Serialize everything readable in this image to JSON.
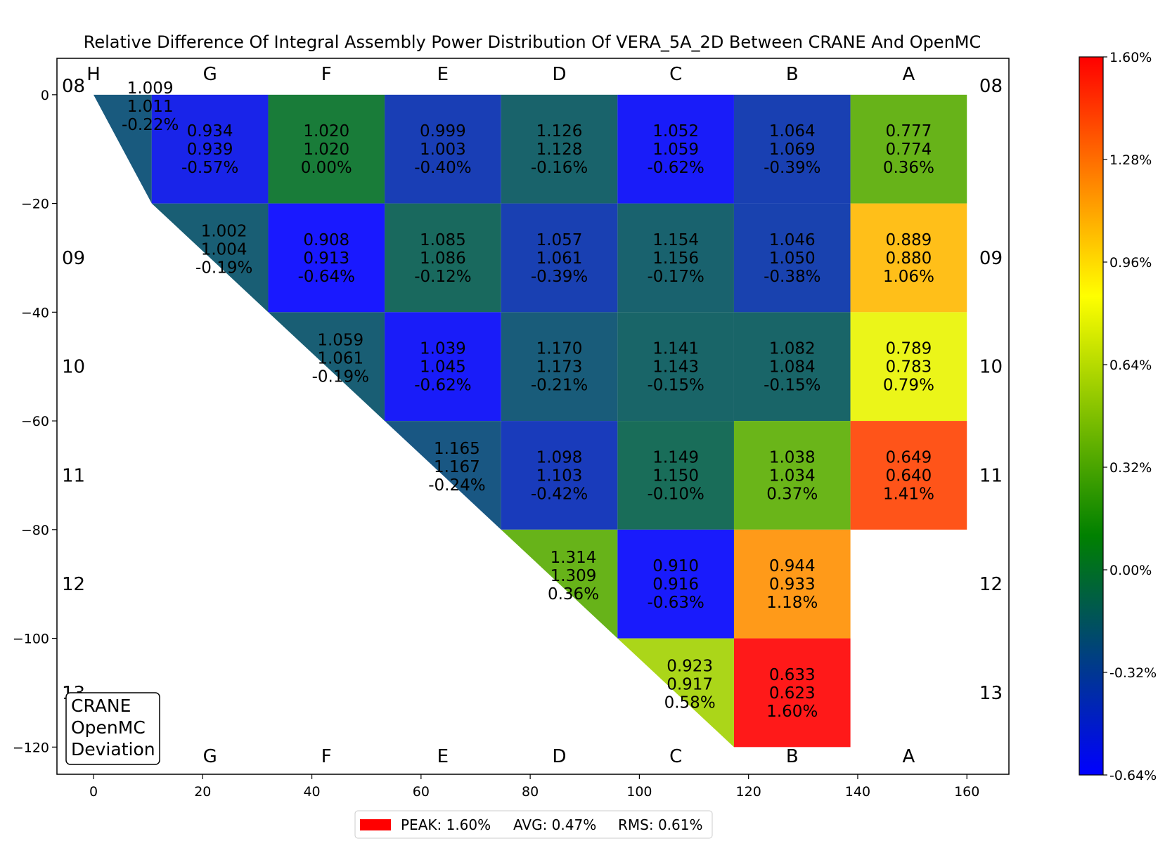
{
  "chart_data": {
    "type": "heatmap",
    "title": "Relative Difference Of Integral Assembly Power Distribution Of VERA_5A_2D Between CRANE And OpenMC",
    "xlim": [
      -6.7,
      167.7
    ],
    "ylim": [
      -125,
      6.7
    ],
    "x_ticks": [
      0,
      20,
      40,
      60,
      80,
      100,
      120,
      140,
      160
    ],
    "y_ticks": [
      0,
      -20,
      -40,
      -60,
      -80,
      -100,
      -120
    ],
    "x_tick_labels": [
      "0",
      "20",
      "40",
      "60",
      "80",
      "100",
      "120",
      "140",
      "160"
    ],
    "y_tick_labels": [
      "0",
      "−20",
      "−40",
      "−60",
      "−80",
      "−100",
      "−120"
    ],
    "column_labels_top": [
      "H",
      "G",
      "F",
      "E",
      "D",
      "C",
      "B",
      "A"
    ],
    "column_labels_bottom": [
      "G",
      "F",
      "E",
      "D",
      "C",
      "B",
      "A"
    ],
    "row_labels": [
      "08",
      "09",
      "10",
      "11",
      "12",
      "13"
    ],
    "colorbar": {
      "min": -0.64,
      "max": 1.6,
      "colors": [
        "#0000ff",
        "#008000",
        "#ffff00",
        "#ff0000"
      ],
      "tick_values": [
        -0.64,
        -0.32,
        0.0,
        0.32,
        0.64,
        0.96,
        1.28,
        1.6
      ],
      "tick_labels": [
        "-0.64%",
        "-0.32%",
        "0.00%",
        "0.32%",
        "0.64%",
        "0.96%",
        "1.28%",
        "1.60%"
      ]
    },
    "legend_box": [
      "CRANE",
      "OpenMC",
      "Deviation"
    ],
    "stats": {
      "peak": "PEAK: 1.60%",
      "avg": "AVG: 0.47%",
      "rms": "RMS: 0.61%",
      "color": "#ff0000"
    },
    "cells": [
      {
        "row": 0,
        "col": 0,
        "crane": "1.009",
        "openmc": "1.011",
        "dev": "-0.22%",
        "value": -0.22
      },
      {
        "row": 0,
        "col": 1,
        "crane": "0.934",
        "openmc": "0.939",
        "dev": "-0.57%",
        "value": -0.57
      },
      {
        "row": 0,
        "col": 2,
        "crane": "1.020",
        "openmc": "1.020",
        "dev": "0.00%",
        "value": 0.0
      },
      {
        "row": 0,
        "col": 3,
        "crane": "0.999",
        "openmc": "1.003",
        "dev": "-0.40%",
        "value": -0.4
      },
      {
        "row": 0,
        "col": 4,
        "crane": "1.126",
        "openmc": "1.128",
        "dev": "-0.16%",
        "value": -0.16
      },
      {
        "row": 0,
        "col": 5,
        "crane": "1.052",
        "openmc": "1.059",
        "dev": "-0.62%",
        "value": -0.62
      },
      {
        "row": 0,
        "col": 6,
        "crane": "1.064",
        "openmc": "1.069",
        "dev": "-0.39%",
        "value": -0.39
      },
      {
        "row": 0,
        "col": 7,
        "crane": "0.777",
        "openmc": "0.774",
        "dev": "0.36%",
        "value": 0.36
      },
      {
        "row": 1,
        "col": 1,
        "crane": "1.002",
        "openmc": "1.004",
        "dev": "-0.19%",
        "value": -0.19
      },
      {
        "row": 1,
        "col": 2,
        "crane": "0.908",
        "openmc": "0.913",
        "dev": "-0.64%",
        "value": -0.64
      },
      {
        "row": 1,
        "col": 3,
        "crane": "1.085",
        "openmc": "1.086",
        "dev": "-0.12%",
        "value": -0.12
      },
      {
        "row": 1,
        "col": 4,
        "crane": "1.057",
        "openmc": "1.061",
        "dev": "-0.39%",
        "value": -0.39
      },
      {
        "row": 1,
        "col": 5,
        "crane": "1.154",
        "openmc": "1.156",
        "dev": "-0.17%",
        "value": -0.17
      },
      {
        "row": 1,
        "col": 6,
        "crane": "1.046",
        "openmc": "1.050",
        "dev": "-0.38%",
        "value": -0.38
      },
      {
        "row": 1,
        "col": 7,
        "crane": "0.889",
        "openmc": "0.880",
        "dev": "1.06%",
        "value": 1.06
      },
      {
        "row": 2,
        "col": 2,
        "crane": "1.059",
        "openmc": "1.061",
        "dev": "-0.19%",
        "value": -0.19
      },
      {
        "row": 2,
        "col": 3,
        "crane": "1.039",
        "openmc": "1.045",
        "dev": "-0.62%",
        "value": -0.62
      },
      {
        "row": 2,
        "col": 4,
        "crane": "1.170",
        "openmc": "1.173",
        "dev": "-0.21%",
        "value": -0.21
      },
      {
        "row": 2,
        "col": 5,
        "crane": "1.141",
        "openmc": "1.143",
        "dev": "-0.15%",
        "value": -0.15
      },
      {
        "row": 2,
        "col": 6,
        "crane": "1.082",
        "openmc": "1.084",
        "dev": "-0.15%",
        "value": -0.15
      },
      {
        "row": 2,
        "col": 7,
        "crane": "0.789",
        "openmc": "0.783",
        "dev": "0.79%",
        "value": 0.79
      },
      {
        "row": 3,
        "col": 3,
        "crane": "1.165",
        "openmc": "1.167",
        "dev": "-0.24%",
        "value": -0.24
      },
      {
        "row": 3,
        "col": 4,
        "crane": "1.098",
        "openmc": "1.103",
        "dev": "-0.42%",
        "value": -0.42
      },
      {
        "row": 3,
        "col": 5,
        "crane": "1.149",
        "openmc": "1.150",
        "dev": "-0.10%",
        "value": -0.1
      },
      {
        "row": 3,
        "col": 6,
        "crane": "1.038",
        "openmc": "1.034",
        "dev": "0.37%",
        "value": 0.37
      },
      {
        "row": 3,
        "col": 7,
        "crane": "0.649",
        "openmc": "0.640",
        "dev": "1.41%",
        "value": 1.41
      },
      {
        "row": 4,
        "col": 4,
        "crane": "1.314",
        "openmc": "1.309",
        "dev": "0.36%",
        "value": 0.36
      },
      {
        "row": 4,
        "col": 5,
        "crane": "0.910",
        "openmc": "0.916",
        "dev": "-0.63%",
        "value": -0.63
      },
      {
        "row": 4,
        "col": 6,
        "crane": "0.944",
        "openmc": "0.933",
        "dev": "1.18%",
        "value": 1.18
      },
      {
        "row": 5,
        "col": 5,
        "crane": "0.923",
        "openmc": "0.917",
        "dev": "0.58%",
        "value": 0.58
      },
      {
        "row": 5,
        "col": 6,
        "crane": "0.633",
        "openmc": "0.623",
        "dev": "1.60%",
        "value": 1.6
      }
    ]
  }
}
